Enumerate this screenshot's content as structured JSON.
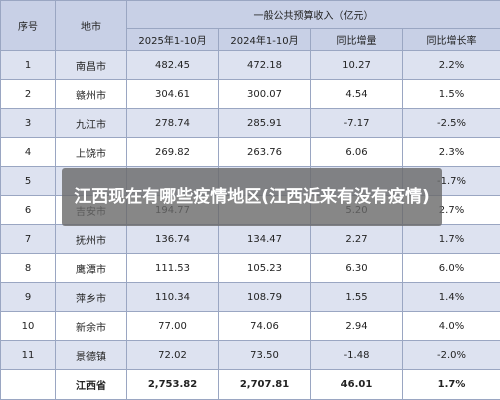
{
  "table": {
    "header": {
      "seq": "序号",
      "region": "地市",
      "group": "一般公共预算收入（亿元）",
      "cols": [
        "2025年1-10月",
        "2024年1-10月",
        "同比增量",
        "同比增长率"
      ]
    },
    "rows": [
      {
        "seq": "1",
        "city": "南昌市",
        "v2025": "482.45",
        "v2024": "472.18",
        "inc": "10.27",
        "rate": "2.2%"
      },
      {
        "seq": "2",
        "city": "赣州市",
        "v2025": "304.61",
        "v2024": "300.07",
        "inc": "4.54",
        "rate": "1.5%"
      },
      {
        "seq": "3",
        "city": "九江市",
        "v2025": "278.74",
        "v2024": "285.91",
        "inc": "-7.17",
        "rate": "-2.5%"
      },
      {
        "seq": "4",
        "city": "上饶市",
        "v2025": "269.82",
        "v2024": "263.76",
        "inc": "6.06",
        "rate": "2.3%"
      },
      {
        "seq": "5",
        "city": "",
        "v2025": "",
        "v2024": "",
        "inc": "",
        "rate": "-1.7%"
      },
      {
        "seq": "6",
        "city": "吉安市",
        "v2025": "194.77",
        "v2024": "",
        "inc": "5.20",
        "rate": "2.7%"
      },
      {
        "seq": "7",
        "city": "抚州市",
        "v2025": "136.74",
        "v2024": "134.47",
        "inc": "2.27",
        "rate": "1.7%"
      },
      {
        "seq": "8",
        "city": "鹰潭市",
        "v2025": "111.53",
        "v2024": "105.23",
        "inc": "6.30",
        "rate": "6.0%"
      },
      {
        "seq": "9",
        "city": "萍乡市",
        "v2025": "110.34",
        "v2024": "108.79",
        "inc": "1.55",
        "rate": "1.4%"
      },
      {
        "seq": "10",
        "city": "新余市",
        "v2025": "77.00",
        "v2024": "74.06",
        "inc": "2.94",
        "rate": "4.0%"
      },
      {
        "seq": "11",
        "city": "景德镇",
        "v2025": "72.02",
        "v2024": "73.50",
        "inc": "-1.48",
        "rate": "-2.0%"
      }
    ],
    "total": {
      "seq": "",
      "city": "江西省",
      "v2025": "2,753.82",
      "v2024": "2,707.81",
      "inc": "46.01",
      "rate": "1.7%"
    }
  },
  "overlay": {
    "text": "江西现在有哪些疫情地区(江西近来有没有疫情)"
  }
}
